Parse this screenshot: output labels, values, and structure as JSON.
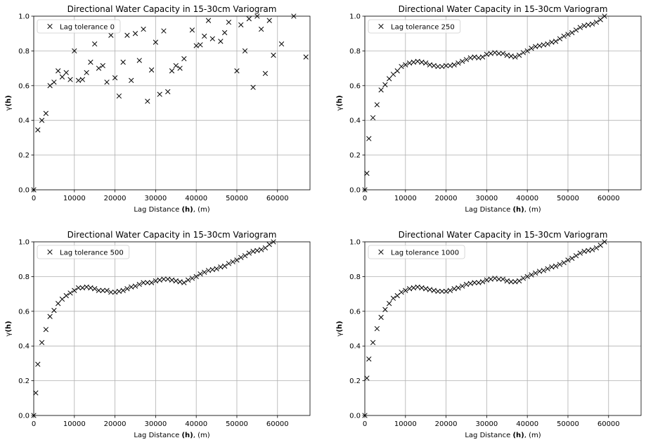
{
  "chart_data": [
    {
      "type": "scatter",
      "title": "Directional Water Capacity in 15-30cm Variogram",
      "xlabel": {
        "pre": "Lag Distance ",
        "bold": "(h)",
        "post": ", (m)"
      },
      "ylabel": {
        "pre": "γ",
        "bold": "(h)"
      },
      "xlim": [
        0,
        68000
      ],
      "ylim": [
        0,
        1.0
      ],
      "xticks": [
        0,
        10000,
        20000,
        30000,
        40000,
        50000,
        60000
      ],
      "yticks": [
        0.0,
        0.2,
        0.4,
        0.6,
        0.8,
        1.0
      ],
      "xtick_labels": [
        "0",
        "10000",
        "20000",
        "30000",
        "40000",
        "50000",
        "60000"
      ],
      "ytick_labels": [
        "0.0",
        "0.2",
        "0.4",
        "0.6",
        "0.8",
        "1.0"
      ],
      "grid": true,
      "legend_loc": "upper left",
      "marker": "x",
      "color": "#000000",
      "series": [
        {
          "name": "Lag tolerance 0",
          "x": [
            0,
            1000,
            2000,
            3000,
            4000,
            5000,
            6000,
            7000,
            8000,
            9000,
            10000,
            11000,
            12000,
            13000,
            14000,
            15000,
            16000,
            17000,
            18000,
            19000,
            20000,
            21000,
            22000,
            23000,
            24000,
            25000,
            26000,
            27000,
            28000,
            29000,
            30000,
            31000,
            32000,
            33000,
            34000,
            35000,
            36000,
            37000,
            39000,
            40000,
            41000,
            42000,
            43000,
            44000,
            46000,
            47000,
            48000,
            50000,
            51000,
            52000,
            53000,
            54000,
            55000,
            56000,
            57000,
            58000,
            59000,
            61000,
            64000,
            67000
          ],
          "y": [
            0,
            0.345,
            0.4,
            0.44,
            0.6,
            0.62,
            0.685,
            0.65,
            0.675,
            0.635,
            0.8,
            0.63,
            0.635,
            0.675,
            0.735,
            0.84,
            0.7,
            0.715,
            0.62,
            0.89,
            0.645,
            0.54,
            0.735,
            0.89,
            0.63,
            0.9,
            0.745,
            0.925,
            0.51,
            0.69,
            0.85,
            0.55,
            0.915,
            0.565,
            0.685,
            0.715,
            0.7,
            0.755,
            0.92,
            0.83,
            0.835,
            0.885,
            0.975,
            0.87,
            0.855,
            0.905,
            0.965,
            0.685,
            0.95,
            0.8,
            0.985,
            0.59,
            1.0,
            0.925,
            0.67,
            0.975,
            0.775,
            0.84,
            1.0,
            0.765
          ]
        }
      ]
    },
    {
      "type": "scatter",
      "title": "Directional Water Capacity in 15-30cm Variogram",
      "xlabel": {
        "pre": "Lag Distance ",
        "bold": "(h)",
        "post": ", (m)"
      },
      "ylabel": {
        "pre": "γ",
        "bold": "(h)"
      },
      "xlim": [
        0,
        68000
      ],
      "ylim": [
        0,
        1.0
      ],
      "xticks": [
        0,
        10000,
        20000,
        30000,
        40000,
        50000,
        60000
      ],
      "yticks": [
        0.0,
        0.2,
        0.4,
        0.6,
        0.8,
        1.0
      ],
      "xtick_labels": [
        "0",
        "10000",
        "20000",
        "30000",
        "40000",
        "50000",
        "60000"
      ],
      "ytick_labels": [
        "0.0",
        "0.2",
        "0.4",
        "0.6",
        "0.8",
        "1.0"
      ],
      "grid": true,
      "legend_loc": "upper left",
      "marker": "x",
      "color": "#000000",
      "series": [
        {
          "name": "Lag tolerance 250",
          "x": [
            0,
            500,
            1000,
            2000,
            3000,
            4000,
            5000,
            6000,
            7000,
            8000,
            9000,
            10000,
            11000,
            12000,
            13000,
            14000,
            15000,
            16000,
            17000,
            18000,
            19000,
            20000,
            21000,
            22000,
            23000,
            24000,
            25000,
            26000,
            27000,
            28000,
            29000,
            30000,
            31000,
            32000,
            33000,
            34000,
            35000,
            36000,
            37000,
            38000,
            39000,
            40000,
            41000,
            42000,
            43000,
            44000,
            45000,
            46000,
            47000,
            48000,
            49000,
            50000,
            51000,
            52000,
            53000,
            54000,
            55000,
            56000,
            57000,
            58000,
            59000
          ],
          "y": [
            0,
            0.095,
            0.295,
            0.415,
            0.49,
            0.575,
            0.605,
            0.64,
            0.665,
            0.685,
            0.71,
            0.72,
            0.73,
            0.735,
            0.74,
            0.735,
            0.73,
            0.72,
            0.715,
            0.71,
            0.71,
            0.715,
            0.715,
            0.72,
            0.73,
            0.74,
            0.75,
            0.76,
            0.765,
            0.76,
            0.765,
            0.78,
            0.785,
            0.79,
            0.785,
            0.785,
            0.775,
            0.77,
            0.765,
            0.775,
            0.79,
            0.8,
            0.815,
            0.825,
            0.83,
            0.835,
            0.84,
            0.85,
            0.855,
            0.87,
            0.885,
            0.895,
            0.905,
            0.92,
            0.935,
            0.945,
            0.95,
            0.955,
            0.965,
            0.98,
            1.0
          ]
        }
      ]
    },
    {
      "type": "scatter",
      "title": "Directional Water Capacity in 15-30cm Variogram",
      "xlabel": {
        "pre": "Lag Distance ",
        "bold": "(h)",
        "post": ", (m)"
      },
      "ylabel": {
        "pre": "γ",
        "bold": "(h)"
      },
      "xlim": [
        0,
        68000
      ],
      "ylim": [
        0,
        1.0
      ],
      "xticks": [
        0,
        10000,
        20000,
        30000,
        40000,
        50000,
        60000
      ],
      "yticks": [
        0.0,
        0.2,
        0.4,
        0.6,
        0.8,
        1.0
      ],
      "xtick_labels": [
        "0",
        "10000",
        "20000",
        "30000",
        "40000",
        "50000",
        "60000"
      ],
      "ytick_labels": [
        "0.0",
        "0.2",
        "0.4",
        "0.6",
        "0.8",
        "1.0"
      ],
      "grid": true,
      "legend_loc": "upper left",
      "marker": "x",
      "color": "#000000",
      "series": [
        {
          "name": "Lag tolerance 500",
          "x": [
            0,
            500,
            1000,
            2000,
            3000,
            4000,
            5000,
            6000,
            7000,
            8000,
            9000,
            10000,
            11000,
            12000,
            13000,
            14000,
            15000,
            16000,
            17000,
            18000,
            19000,
            20000,
            21000,
            22000,
            23000,
            24000,
            25000,
            26000,
            27000,
            28000,
            29000,
            30000,
            31000,
            32000,
            33000,
            34000,
            35000,
            36000,
            37000,
            38000,
            39000,
            40000,
            41000,
            42000,
            43000,
            44000,
            45000,
            46000,
            47000,
            48000,
            49000,
            50000,
            51000,
            52000,
            53000,
            54000,
            55000,
            56000,
            57000,
            58000,
            59000
          ],
          "y": [
            0,
            0.13,
            0.295,
            0.42,
            0.495,
            0.57,
            0.605,
            0.645,
            0.67,
            0.69,
            0.705,
            0.72,
            0.735,
            0.735,
            0.74,
            0.735,
            0.73,
            0.72,
            0.72,
            0.72,
            0.71,
            0.71,
            0.715,
            0.72,
            0.73,
            0.74,
            0.745,
            0.755,
            0.765,
            0.765,
            0.765,
            0.775,
            0.78,
            0.785,
            0.785,
            0.78,
            0.775,
            0.77,
            0.765,
            0.78,
            0.79,
            0.8,
            0.815,
            0.825,
            0.835,
            0.84,
            0.845,
            0.855,
            0.86,
            0.875,
            0.885,
            0.895,
            0.91,
            0.92,
            0.935,
            0.945,
            0.95,
            0.955,
            0.965,
            0.985,
            1.0
          ]
        }
      ]
    },
    {
      "type": "scatter",
      "title": "Directional Water Capacity in 15-30cm Variogram",
      "xlabel": {
        "pre": "Lag Distance ",
        "bold": "(h)",
        "post": ", (m)"
      },
      "ylabel": {
        "pre": "γ",
        "bold": "(h)"
      },
      "xlim": [
        0,
        68000
      ],
      "ylim": [
        0,
        1.0
      ],
      "xticks": [
        0,
        10000,
        20000,
        30000,
        40000,
        50000,
        60000
      ],
      "yticks": [
        0.0,
        0.2,
        0.4,
        0.6,
        0.8,
        1.0
      ],
      "xtick_labels": [
        "0",
        "10000",
        "20000",
        "30000",
        "40000",
        "50000",
        "60000"
      ],
      "ytick_labels": [
        "0.0",
        "0.2",
        "0.4",
        "0.6",
        "0.8",
        "1.0"
      ],
      "grid": true,
      "legend_loc": "upper left",
      "marker": "x",
      "color": "#000000",
      "series": [
        {
          "name": "Lag tolerance 1000",
          "x": [
            0,
            500,
            1000,
            2000,
            3000,
            4000,
            5000,
            6000,
            7000,
            8000,
            9000,
            10000,
            11000,
            12000,
            13000,
            14000,
            15000,
            16000,
            17000,
            18000,
            19000,
            20000,
            21000,
            22000,
            23000,
            24000,
            25000,
            26000,
            27000,
            28000,
            29000,
            30000,
            31000,
            32000,
            33000,
            34000,
            35000,
            36000,
            37000,
            38000,
            39000,
            40000,
            41000,
            42000,
            43000,
            44000,
            45000,
            46000,
            47000,
            48000,
            49000,
            50000,
            51000,
            52000,
            53000,
            54000,
            55000,
            56000,
            57000,
            58000,
            59000
          ],
          "y": [
            0,
            0.215,
            0.325,
            0.42,
            0.5,
            0.565,
            0.61,
            0.645,
            0.675,
            0.69,
            0.71,
            0.72,
            0.73,
            0.735,
            0.74,
            0.735,
            0.73,
            0.725,
            0.72,
            0.715,
            0.715,
            0.715,
            0.72,
            0.73,
            0.735,
            0.745,
            0.755,
            0.76,
            0.765,
            0.765,
            0.77,
            0.78,
            0.785,
            0.79,
            0.785,
            0.785,
            0.775,
            0.77,
            0.77,
            0.775,
            0.79,
            0.8,
            0.81,
            0.82,
            0.83,
            0.835,
            0.845,
            0.855,
            0.86,
            0.87,
            0.88,
            0.895,
            0.905,
            0.92,
            0.935,
            0.945,
            0.95,
            0.955,
            0.965,
            0.98,
            1.0
          ]
        }
      ]
    }
  ]
}
